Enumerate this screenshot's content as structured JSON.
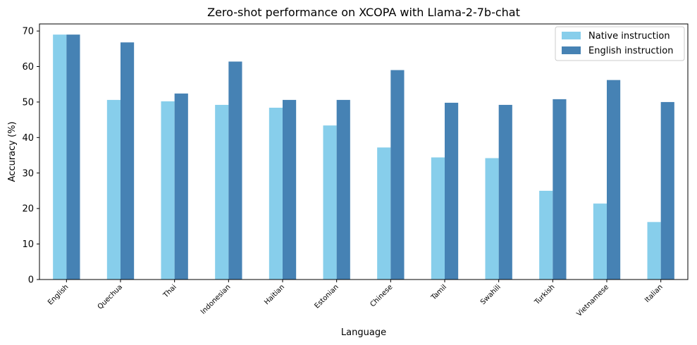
{
  "chart_data": {
    "type": "bar",
    "title": "Zero-shot performance on XCOPA with Llama-2-7b-chat",
    "xlabel": "Language",
    "ylabel": "Accuracy (%)",
    "ylim": [
      0,
      72
    ],
    "yticks": [
      0,
      10,
      20,
      30,
      40,
      50,
      60,
      70
    ],
    "grid": false,
    "legend_position": "top-right",
    "categories": [
      "English",
      "Quechua",
      "Thai",
      "Indonesian",
      "Haitian",
      "Estonian",
      "Chinese",
      "Tamil",
      "Swahili",
      "Turkish",
      "Vietnamese",
      "Italian"
    ],
    "series": [
      {
        "name": "Native instruction",
        "color": "#87ceeb",
        "values": [
          69.0,
          50.6,
          50.2,
          49.2,
          48.4,
          43.4,
          37.2,
          34.4,
          34.2,
          25.0,
          21.4,
          16.2
        ]
      },
      {
        "name": "English instruction",
        "color": "#4682b4",
        "values": [
          69.0,
          66.8,
          52.4,
          61.4,
          50.6,
          50.6,
          59.0,
          49.8,
          49.2,
          50.8,
          56.2,
          50.0
        ]
      }
    ]
  }
}
